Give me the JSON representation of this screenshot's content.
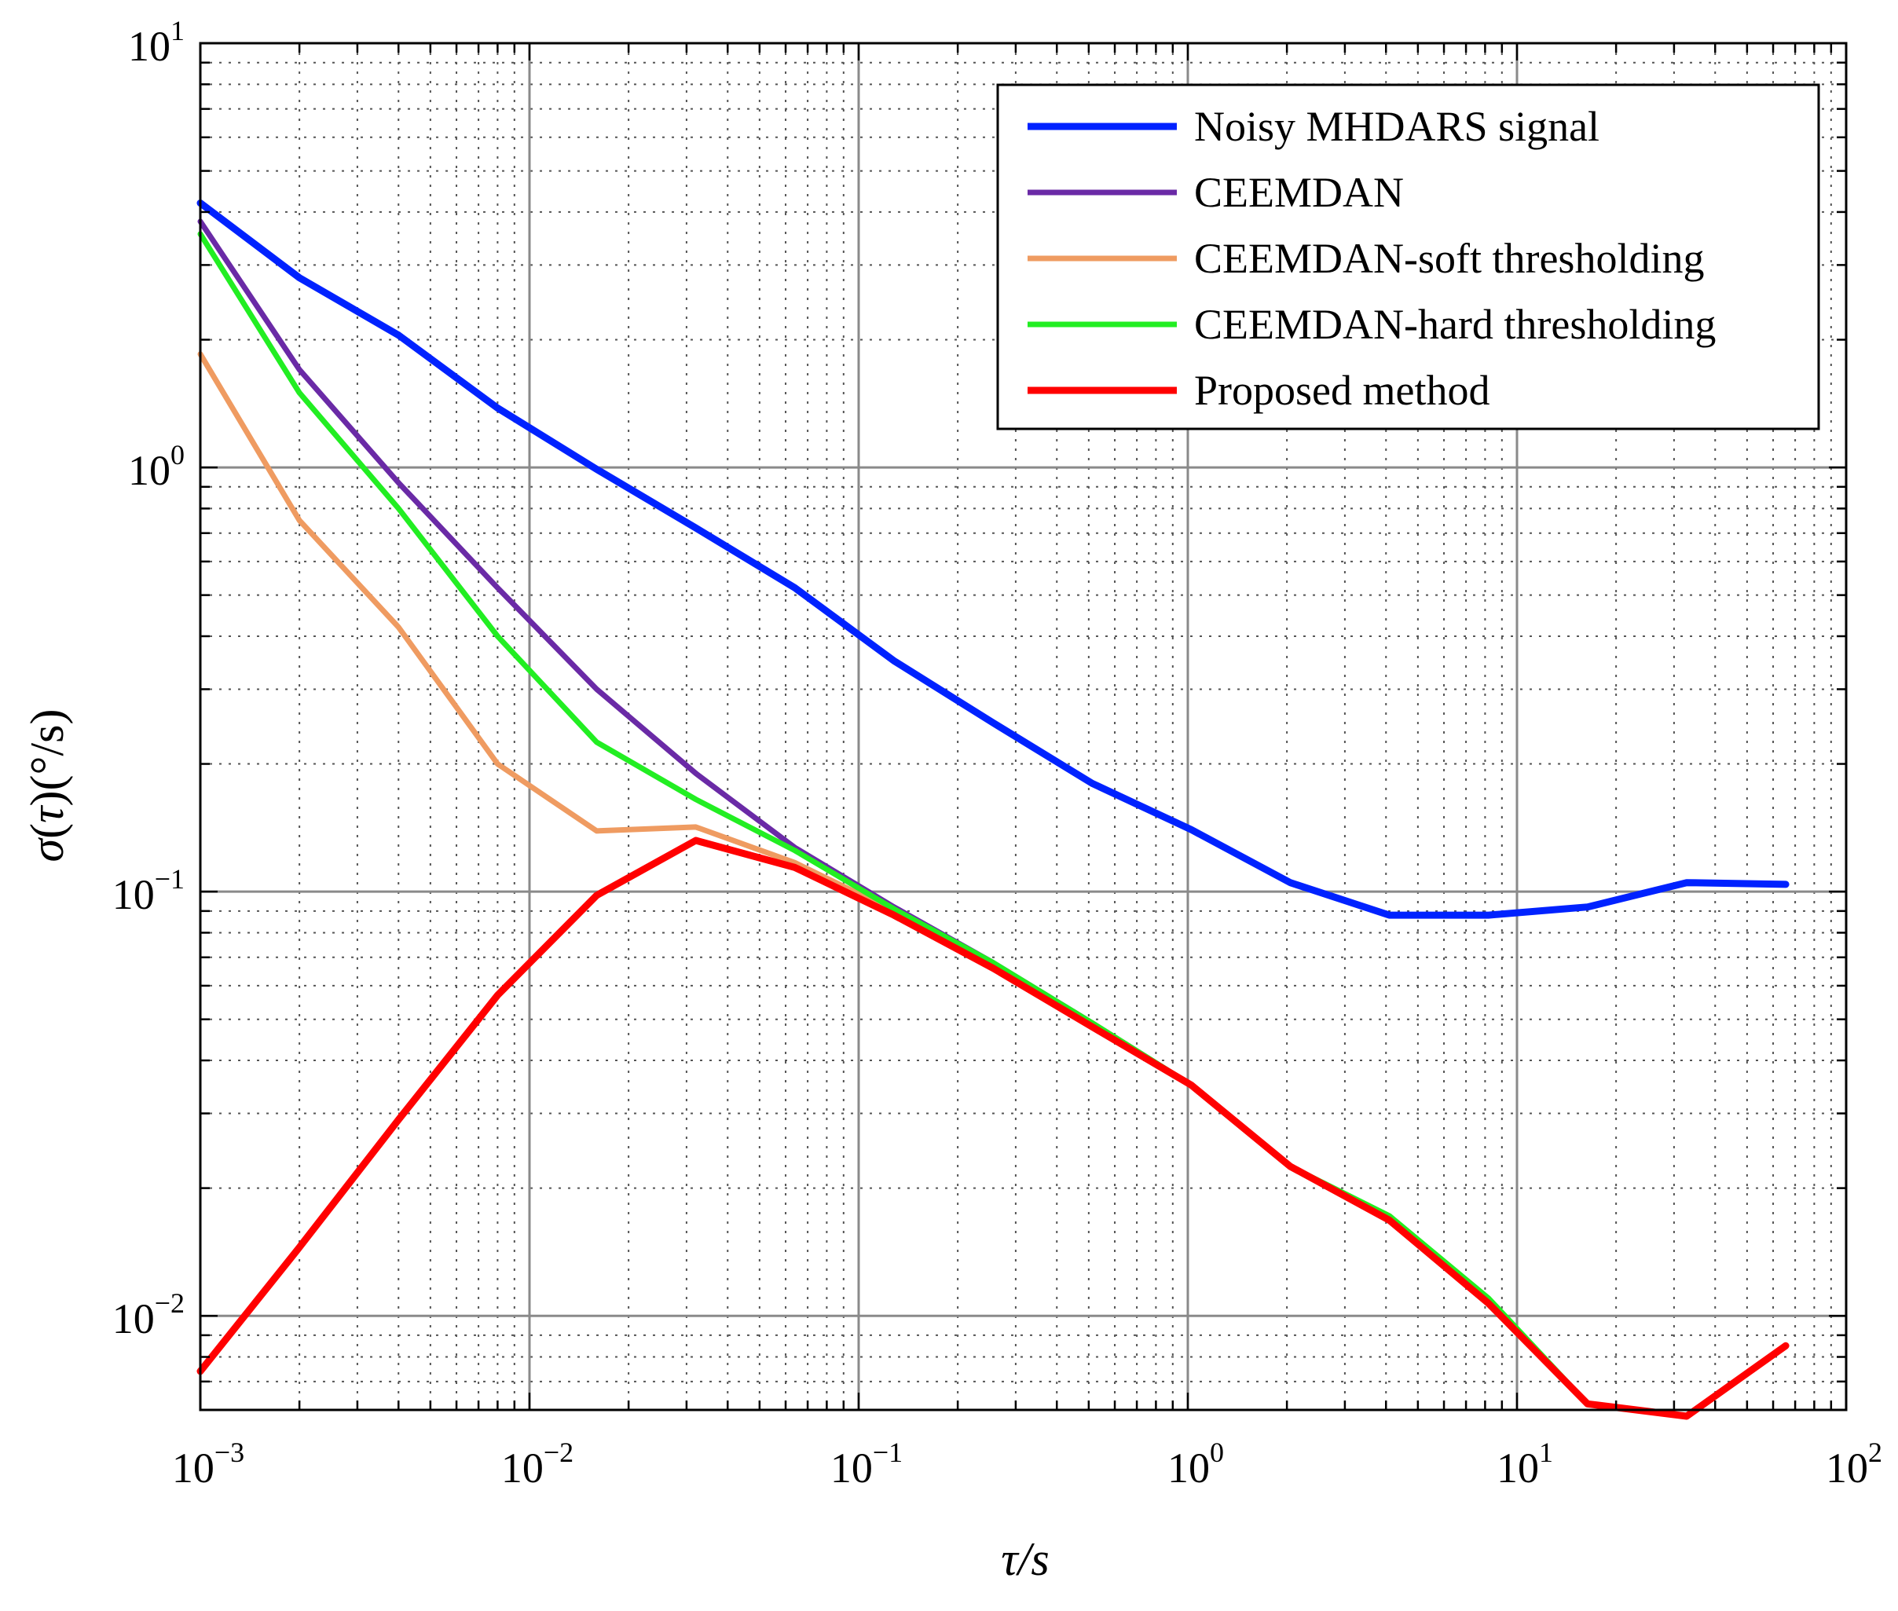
{
  "chart_data": {
    "type": "line",
    "scale": {
      "x": "log",
      "y": "log"
    },
    "xlim": [
      0.001,
      100
    ],
    "ylim": [
      0.006,
      10
    ],
    "xlabel": {
      "sym": "τ",
      "rest": "/s"
    },
    "ylabel": {
      "sym": "σ",
      "paren_open": "(",
      "tau": "τ",
      "paren_close": ")",
      "unit": "(°/s)"
    },
    "grid": true,
    "legend_position": "top-right",
    "x_ticks": [
      {
        "value": 0.001,
        "base": "10",
        "exp": "−3"
      },
      {
        "value": 0.01,
        "base": "10",
        "exp": "−2"
      },
      {
        "value": 0.1,
        "base": "10",
        "exp": "−1"
      },
      {
        "value": 1,
        "base": "10",
        "exp": "0"
      },
      {
        "value": 10,
        "base": "10",
        "exp": "1"
      },
      {
        "value": 100,
        "base": "10",
        "exp": "2"
      }
    ],
    "y_ticks": [
      {
        "value": 0.01,
        "base": "10",
        "exp": "−2"
      },
      {
        "value": 0.1,
        "base": "10",
        "exp": "−1"
      },
      {
        "value": 1,
        "base": "10",
        "exp": "0"
      },
      {
        "value": 10,
        "base": "10",
        "exp": "1"
      }
    ],
    "x": [
      0.001,
      0.002,
      0.004,
      0.008,
      0.016,
      0.032,
      0.064,
      0.128,
      0.256,
      0.512,
      1.024,
      2.048,
      4.096,
      8.192,
      16.384,
      32.768,
      65.536
    ],
    "series": [
      {
        "name": "Noisy MHDARS signal",
        "color": "#0022ff",
        "width": 9,
        "values": [
          4.2,
          2.8,
          2.05,
          1.38,
          0.99,
          0.72,
          0.52,
          0.35,
          0.25,
          0.18,
          0.14,
          0.105,
          0.088,
          0.088,
          0.092,
          0.105,
          0.104
        ]
      },
      {
        "name": "CEEMDAN",
        "color": "#6a2aa6",
        "width": 7,
        "values": [
          3.8,
          1.7,
          0.92,
          0.52,
          0.3,
          0.19,
          0.127,
          0.092,
          0.068,
          0.049,
          0.035,
          0.0225,
          0.017,
          0.0108,
          0.0062,
          0.0058,
          0.0085
        ]
      },
      {
        "name": "CEEMDAN-soft thresholding",
        "color": "#ef9b61",
        "width": 7,
        "values": [
          1.85,
          0.75,
          0.42,
          0.2,
          0.139,
          0.142,
          0.117,
          0.09,
          0.067,
          0.049,
          0.035,
          0.0225,
          0.017,
          0.0108,
          0.0062,
          0.0058,
          0.0085
        ]
      },
      {
        "name": "CEEMDAN-hard thresholding",
        "color": "#22ee22",
        "width": 7,
        "values": [
          3.55,
          1.5,
          0.8,
          0.4,
          0.225,
          0.165,
          0.125,
          0.091,
          0.068,
          0.049,
          0.035,
          0.0225,
          0.0172,
          0.011,
          0.0062,
          0.0058,
          0.0085
        ]
      },
      {
        "name": "Proposed method",
        "color": "#ff0000",
        "width": 9,
        "values": [
          0.0074,
          0.0145,
          0.029,
          0.057,
          0.098,
          0.132,
          0.114,
          0.088,
          0.066,
          0.048,
          0.035,
          0.0225,
          0.0168,
          0.0107,
          0.0062,
          0.0058,
          0.0085
        ]
      }
    ]
  }
}
